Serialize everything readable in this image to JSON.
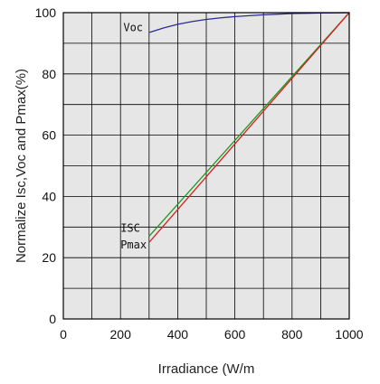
{
  "chart_data": {
    "type": "line",
    "xlabel": "Irradiance (W/m",
    "ylabel": "Normalize Isc,Voc and Pmax(%)",
    "xlim": [
      0,
      1000
    ],
    "ylim": [
      0,
      100
    ],
    "x_ticks": [
      0,
      200,
      400,
      600,
      800,
      1000
    ],
    "y_ticks": [
      0,
      20,
      40,
      60,
      80,
      100
    ],
    "x_tick_labels": [
      "0",
      "200",
      "400",
      "600",
      "800",
      "1000"
    ],
    "y_tick_labels": [
      "0",
      "20",
      "40",
      "60",
      "80",
      "100"
    ],
    "grid": true,
    "background": "#e6e6e6",
    "series": [
      {
        "name": "Voc",
        "color": "#2a2a9a",
        "x": [
          300,
          350,
          400,
          450,
          500,
          550,
          600,
          650,
          700,
          750,
          800,
          850,
          900,
          950,
          1000
        ],
        "y": [
          93.5,
          95.0,
          96.2,
          97.1,
          97.8,
          98.3,
          98.7,
          99.0,
          99.3,
          99.5,
          99.7,
          99.8,
          99.9,
          99.95,
          100
        ]
      },
      {
        "name": "ISC",
        "color": "#1a9a1a",
        "x": [
          300,
          1000
        ],
        "y": [
          27,
          100
        ]
      },
      {
        "name": "Pmax",
        "color": "#d42020",
        "x": [
          300,
          1000
        ],
        "y": [
          25,
          100
        ]
      }
    ],
    "annotations": [
      {
        "text": "Voc",
        "x": 210,
        "y": 94
      },
      {
        "text": "ISC",
        "x": 200,
        "y": 28.5
      },
      {
        "text": "Pmax",
        "x": 200,
        "y": 23
      }
    ]
  }
}
